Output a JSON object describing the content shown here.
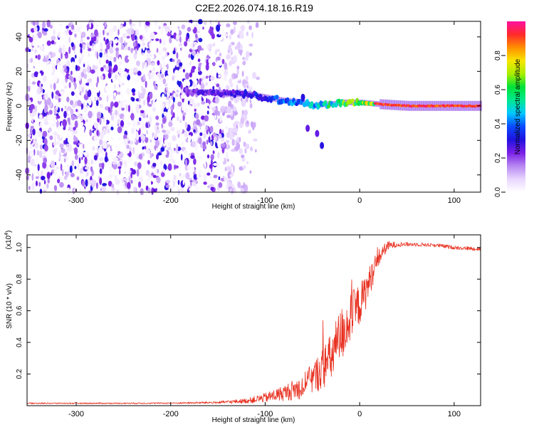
{
  "title": "C2E2.2026.074.18.16.R19",
  "chart_data": [
    {
      "type": "heatmap",
      "xlabel": "Height of straight line (km)",
      "ylabel": "Frequency (Hz)",
      "xlim": [
        -352,
        128
      ],
      "ylim": [
        -50,
        49
      ],
      "xticks": [
        -300,
        -200,
        -100,
        0,
        100
      ],
      "xtick_labels": [
        "-300",
        "-200",
        "-100",
        "0",
        "100"
      ],
      "yticks": [
        -40,
        -20,
        0,
        20,
        40
      ],
      "ytick_labels": [
        "-40",
        "-20",
        "0",
        "20",
        "40"
      ],
      "colorbar": {
        "label": "Normalized spectral amplitude",
        "range": [
          0,
          1
        ],
        "ticks": [
          0.0,
          0.2,
          0.4,
          0.6,
          0.8
        ],
        "tick_labels": [
          "0.0",
          "0.2",
          "0.4",
          "0.6",
          "0.8"
        ],
        "colors": [
          "#ffffff",
          "#e8d6ff",
          "#b787f2",
          "#7a1ee6",
          "#1f12e0",
          "#0a4bff",
          "#00c8ff",
          "#00e890",
          "#00e23a",
          "#a8ee00",
          "#f7e600",
          "#ff9000",
          "#ff2a2a",
          "#ff10a0"
        ]
      },
      "noise_region": {
        "x_from": -352,
        "x_to": -140,
        "fade_to": -105
      },
      "signal_ridge": {
        "x": [
          -185,
          -160,
          -140,
          -120,
          -100,
          -80,
          -60,
          -50,
          -40,
          -30,
          -20,
          -10,
          0,
          20,
          50,
          80,
          128
        ],
        "freq": [
          8,
          8,
          7,
          7,
          5,
          3,
          2,
          0,
          1,
          1,
          2,
          2,
          2,
          1,
          0,
          0,
          0
        ],
        "amplitude": [
          0.25,
          0.3,
          0.3,
          0.35,
          0.4,
          0.45,
          0.5,
          0.55,
          0.6,
          0.65,
          0.7,
          0.75,
          0.8,
          0.85,
          0.9,
          0.95,
          0.95
        ]
      },
      "side_features": [
        {
          "x": -60,
          "freq": 5,
          "amplitude": 0.3
        },
        {
          "x": -55,
          "freq": -13,
          "amplitude": 0.25
        },
        {
          "x": -45,
          "freq": -16,
          "amplitude": 0.25
        },
        {
          "x": -40,
          "freq": -23,
          "amplitude": 0.3
        }
      ]
    },
    {
      "type": "line",
      "xlabel": "Height of straight line (km)",
      "ylabel": "SNR (10 * v/v)",
      "exponent_label": "(x10",
      "exponent_power": "4",
      "exponent_close": ")",
      "xlim": [
        -352,
        128
      ],
      "ylim": [
        0,
        1.08
      ],
      "xticks": [
        -300,
        -200,
        -100,
        0,
        100
      ],
      "xtick_labels": [
        "-300",
        "-200",
        "-100",
        "0",
        "100"
      ],
      "yticks": [
        0.2,
        0.4,
        0.6,
        0.8,
        1.0
      ],
      "ytick_labels": [
        "0.2",
        "0.4",
        "0.6",
        "0.8",
        "1.0"
      ],
      "series": [
        {
          "name": "SNR",
          "color": "#e83020",
          "x": [
            -352,
            -300,
            -250,
            -200,
            -150,
            -120,
            -100,
            -80,
            -60,
            -50,
            -40,
            -30,
            -25,
            -20,
            -15,
            -10,
            -5,
            0,
            5,
            10,
            15,
            20,
            25,
            30,
            40,
            60,
            80,
            100,
            128
          ],
          "y": [
            0.015,
            0.015,
            0.015,
            0.016,
            0.02,
            0.03,
            0.05,
            0.08,
            0.12,
            0.17,
            0.23,
            0.3,
            0.37,
            0.44,
            0.5,
            0.55,
            0.6,
            0.64,
            0.7,
            0.78,
            0.86,
            0.93,
            0.98,
            1.01,
            1.02,
            1.02,
            1.015,
            1.0,
            0.99
          ],
          "noise": [
            0.004,
            0.004,
            0.004,
            0.004,
            0.008,
            0.015,
            0.03,
            0.05,
            0.08,
            0.1,
            0.13,
            0.16,
            0.18,
            0.18,
            0.18,
            0.16,
            0.15,
            0.13,
            0.12,
            0.1,
            0.08,
            0.06,
            0.04,
            0.03,
            0.015,
            0.012,
            0.012,
            0.012,
            0.012
          ]
        }
      ]
    }
  ]
}
